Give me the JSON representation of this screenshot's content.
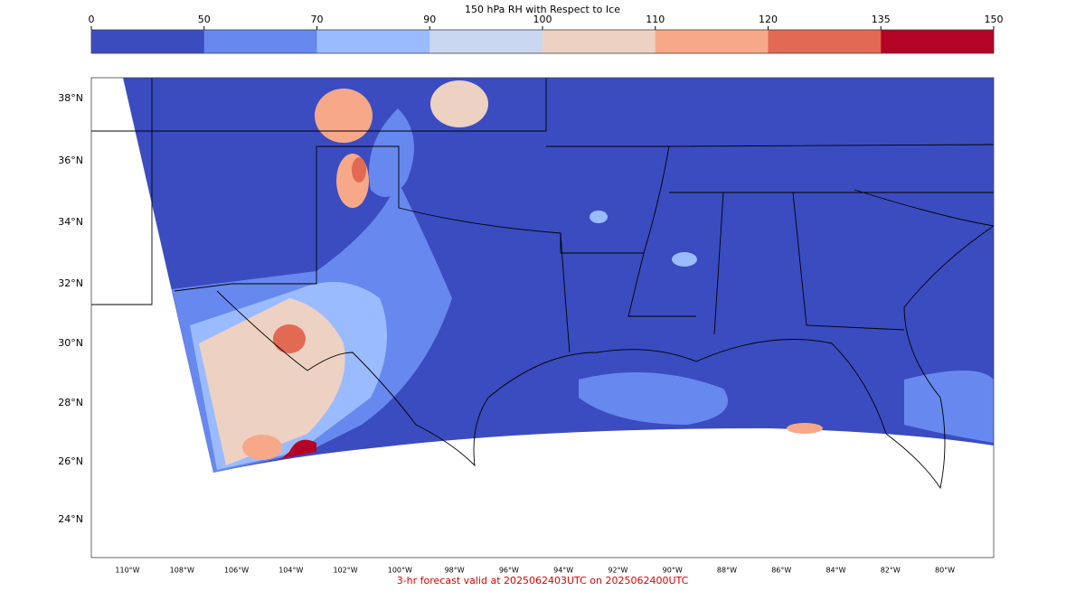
{
  "colorbar": {
    "title": "150 hPa RH with Respect to Ice",
    "ticks": [
      0,
      50,
      70,
      90,
      100,
      110,
      120,
      135,
      150
    ],
    "colors": [
      "#3b4cc0",
      "#6788ee",
      "#9abbff",
      "#c9d7f0",
      "#edd1c2",
      "#f7a889",
      "#e26952",
      "#b40426"
    ]
  },
  "map": {
    "lat_labels": [
      "38°N",
      "36°N",
      "34°N",
      "32°N",
      "30°N",
      "28°N",
      "26°N",
      "24°N"
    ],
    "lon_labels": [
      "110°W",
      "108°W",
      "106°W",
      "104°W",
      "102°W",
      "100°W",
      "98°W",
      "96°W",
      "94°W",
      "92°W",
      "90°W",
      "88°W",
      "86°W",
      "84°W",
      "82°W",
      "80°W"
    ]
  },
  "footer": "3-hr forecast valid at 2025062403UTC on 2025062400UTC"
}
